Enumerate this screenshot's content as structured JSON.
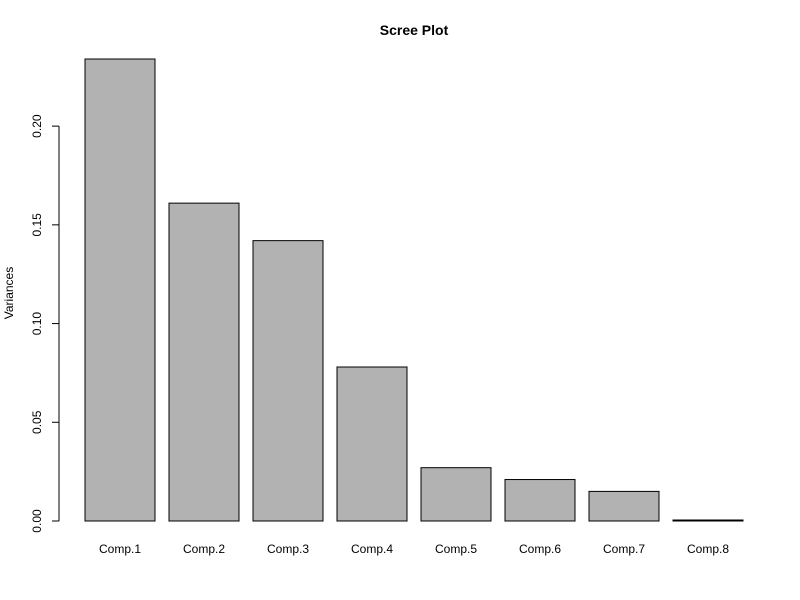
{
  "chart_data": {
    "type": "bar",
    "title": "Scree Plot",
    "ylabel": "Variances",
    "xlabel": "",
    "categories": [
      "Comp.1",
      "Comp.2",
      "Comp.3",
      "Comp.4",
      "Comp.5",
      "Comp.6",
      "Comp.7",
      "Comp.8"
    ],
    "values": [
      0.234,
      0.161,
      0.142,
      0.078,
      0.027,
      0.021,
      0.015,
      0.0005
    ],
    "ylim": [
      0,
      0.234
    ],
    "yticks": [
      0.0,
      0.05,
      0.1,
      0.15,
      0.2
    ],
    "yticklabels": [
      "0.00",
      "0.05",
      "0.10",
      "0.15",
      "0.20"
    ],
    "bar_color": "#b2b2b2",
    "grid": false,
    "legend": "none"
  }
}
